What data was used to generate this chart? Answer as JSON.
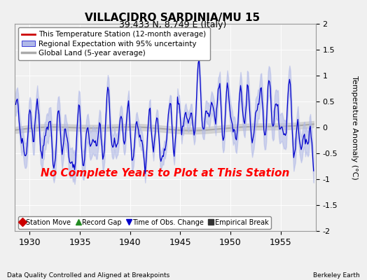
{
  "title": "VILLACIDRO SARDINIA/MU 15",
  "subtitle": "39.433 N, 8.749 E (Italy)",
  "xlabel_years": [
    1930,
    1935,
    1940,
    1945,
    1950,
    1955
  ],
  "ylim": [
    -2,
    2
  ],
  "yticks": [
    -2,
    -1.5,
    -1,
    -0.5,
    0,
    0.5,
    1,
    1.5,
    2
  ],
  "xlim": [
    1928.5,
    1958.5
  ],
  "ylabel": "Temperature Anomaly (°C)",
  "footer_left": "Data Quality Controlled and Aligned at Breakpoints",
  "footer_right": "Berkeley Earth",
  "no_data_text": "No Complete Years to Plot at This Station",
  "blue_line_color": "#0000cc",
  "blue_fill_color": "#b0b8e8",
  "gray_line_color": "#aaaaaa",
  "background_color": "#f0f0f0",
  "title_fontsize": 10,
  "subtitle_fontsize": 9,
  "legend_items": [
    {
      "label": "This Temperature Station (12-month average)",
      "color": "#cc0000",
      "lw": 2
    },
    {
      "label": "Regional Expectation with 95% uncertainty",
      "color": "#0000cc",
      "lw": 1.5
    },
    {
      "label": "Global Land (5-year average)",
      "color": "#aaaaaa",
      "lw": 2
    }
  ],
  "marker_items": [
    {
      "label": "Station Move",
      "marker": "D",
      "color": "#cc0000"
    },
    {
      "label": "Record Gap",
      "marker": "^",
      "color": "#228B22"
    },
    {
      "label": "Time of Obs. Change",
      "marker": "v",
      "color": "#0000cc"
    },
    {
      "label": "Empirical Break",
      "marker": "s",
      "color": "#333333"
    }
  ]
}
